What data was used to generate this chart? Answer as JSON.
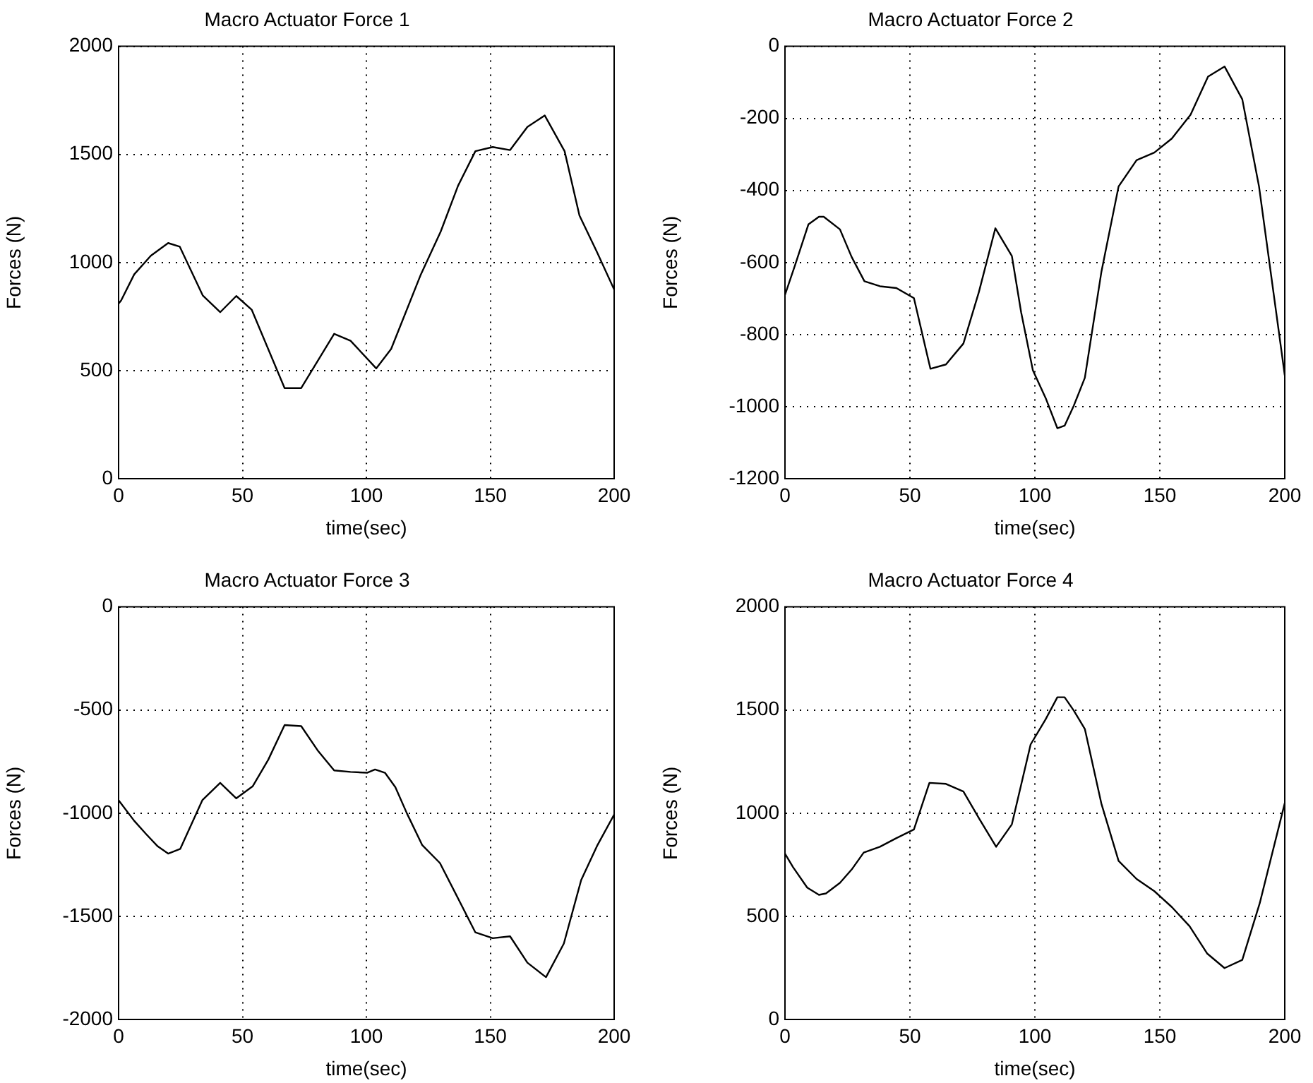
{
  "chart_data": [
    {
      "type": "line",
      "title": "Macro Actuator Force 1",
      "xlabel": "time(sec)",
      "ylabel": "Forces (N)",
      "xlim": [
        0,
        200
      ],
      "xticks": [
        0,
        50,
        100,
        150,
        200
      ],
      "ylim": [
        0,
        2000
      ],
      "yticks": [
        0,
        500,
        1000,
        1500,
        2000
      ],
      "grid": true,
      "marker": "none",
      "legend": false,
      "x": [
        0,
        1,
        6.3,
        13,
        20,
        24.7,
        34,
        41,
        47.5,
        53.7,
        67,
        73.7,
        87,
        93.6,
        104,
        110,
        122,
        130,
        137,
        144,
        151,
        158,
        165,
        172,
        180,
        186,
        193,
        200
      ],
      "series": [
        {
          "color": "#000000",
          "values": [
            810,
            824,
            945,
            1031,
            1090,
            1073,
            847,
            770,
            845,
            782,
            419,
            419,
            670,
            638,
            510,
            600,
            945,
            1143,
            1355,
            1515,
            1534,
            1520,
            1627,
            1680,
            1515,
            1217,
            1050,
            875
          ]
        }
      ]
    },
    {
      "type": "line",
      "title": "Macro Actuator Force 2",
      "xlabel": "time(sec)",
      "ylabel": "Forces (N)",
      "xlim": [
        0,
        200
      ],
      "xticks": [
        0,
        50,
        100,
        150,
        200
      ],
      "ylim": [
        -1200,
        0
      ],
      "yticks": [
        -1200,
        -1000,
        -800,
        -600,
        -400,
        -200,
        0
      ],
      "grid": true,
      "marker": "none",
      "legend": false,
      "x": [
        0,
        4.1,
        9.4,
        13.6,
        15.5,
        22,
        26.7,
        31.8,
        38,
        44.6,
        51.6,
        58.2,
        64.4,
        71.4,
        77.6,
        84.2,
        90.8,
        94.5,
        99.2,
        104.3,
        109,
        111.9,
        115.6,
        120,
        126.6,
        133.5,
        140.7,
        147.8,
        154.8,
        162.3,
        169.3,
        175.9,
        183,
        189.7,
        200
      ],
      "series": [
        {
          "color": "#000000",
          "values": [
            -690,
            -606,
            -494,
            -473,
            -473,
            -508,
            -585,
            -652,
            -666,
            -671,
            -699,
            -895,
            -883,
            -825,
            -682,
            -505,
            -582,
            -738,
            -899,
            -976,
            -1060,
            -1053,
            -997,
            -920,
            -627,
            -389,
            -316,
            -295,
            -256,
            -190,
            -84,
            -56,
            -147,
            -389,
            -913
          ]
        }
      ]
    },
    {
      "type": "line",
      "title": "Macro Actuator Force 3",
      "xlabel": "time(sec)",
      "ylabel": "Forces (N)",
      "xlim": [
        0,
        200
      ],
      "xticks": [
        0,
        50,
        100,
        150,
        200
      ],
      "ylim": [
        -2000,
        0
      ],
      "yticks": [
        -2000,
        -1500,
        -1000,
        -500,
        0
      ],
      "grid": true,
      "marker": "none",
      "legend": false,
      "x": [
        0,
        6.3,
        11,
        15.8,
        20,
        24.9,
        33.8,
        41,
        47.5,
        54.1,
        60.4,
        67,
        73.7,
        80.3,
        87,
        93.6,
        100.3,
        103.5,
        107.5,
        111.7,
        116.4,
        122.5,
        129.7,
        136.4,
        144,
        151,
        158,
        165,
        172.5,
        179.7,
        186.7,
        193.3,
        200
      ],
      "series": [
        {
          "color": "#000000",
          "values": [
            -937,
            -1037,
            -1100,
            -1161,
            -1196,
            -1173,
            -937,
            -853,
            -928,
            -870,
            -741,
            -573,
            -578,
            -695,
            -793,
            -800,
            -804,
            -788,
            -804,
            -874,
            -1002,
            -1154,
            -1242,
            -1399,
            -1578,
            -1606,
            -1597,
            -1725,
            -1795,
            -1632,
            -1324,
            -1154,
            -1007
          ]
        }
      ]
    },
    {
      "type": "line",
      "title": "Macro Actuator Force 4",
      "xlabel": "time(sec)",
      "ylabel": "Forces (N)",
      "xlim": [
        0,
        200
      ],
      "xticks": [
        0,
        50,
        100,
        150,
        200
      ],
      "ylim": [
        0,
        2000
      ],
      "yticks": [
        0,
        500,
        1000,
        1500,
        2000
      ],
      "grid": true,
      "marker": "none",
      "legend": false,
      "x": [
        0,
        3.2,
        8.9,
        13.6,
        16.4,
        22,
        26.7,
        31.5,
        38,
        44.6,
        51.6,
        57.8,
        64.4,
        71.4,
        77.9,
        84.5,
        90.8,
        98.3,
        104.3,
        109,
        111.9,
        115.6,
        120,
        126.6,
        133.5,
        140.7,
        147.8,
        154.8,
        161.9,
        169,
        175.9,
        183,
        190,
        200
      ],
      "series": [
        {
          "color": "#000000",
          "values": [
            804,
            739,
            639,
            604,
            611,
            662,
            727,
            809,
            837,
            879,
            921,
            1147,
            1142,
            1105,
            970,
            837,
            946,
            1333,
            1455,
            1562,
            1562,
            1497,
            1408,
            1047,
            769,
            681,
            622,
            545,
            452,
            319,
            249,
            289,
            564,
            1049
          ]
        }
      ]
    }
  ]
}
